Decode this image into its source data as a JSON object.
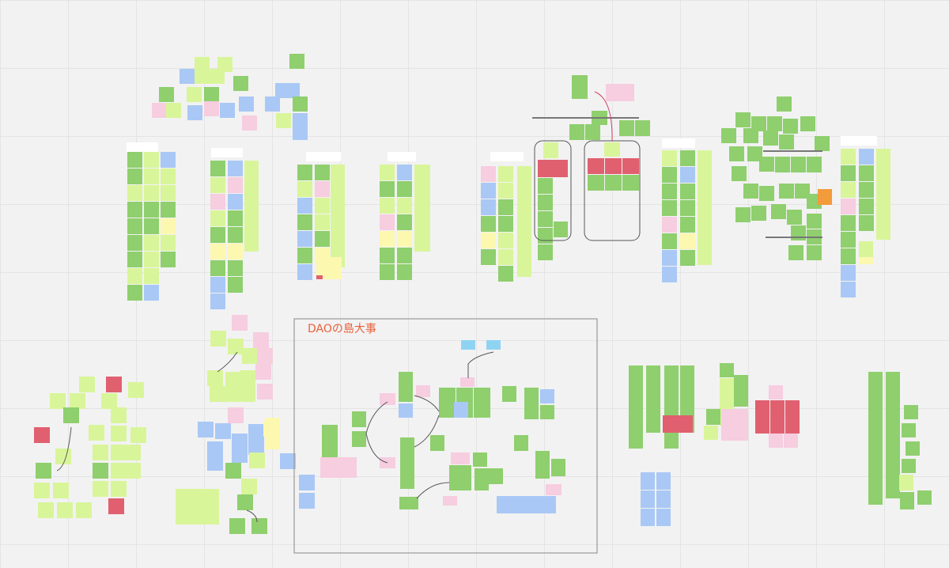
{
  "frame": {
    "title": "DAOの島大事"
  }
}
